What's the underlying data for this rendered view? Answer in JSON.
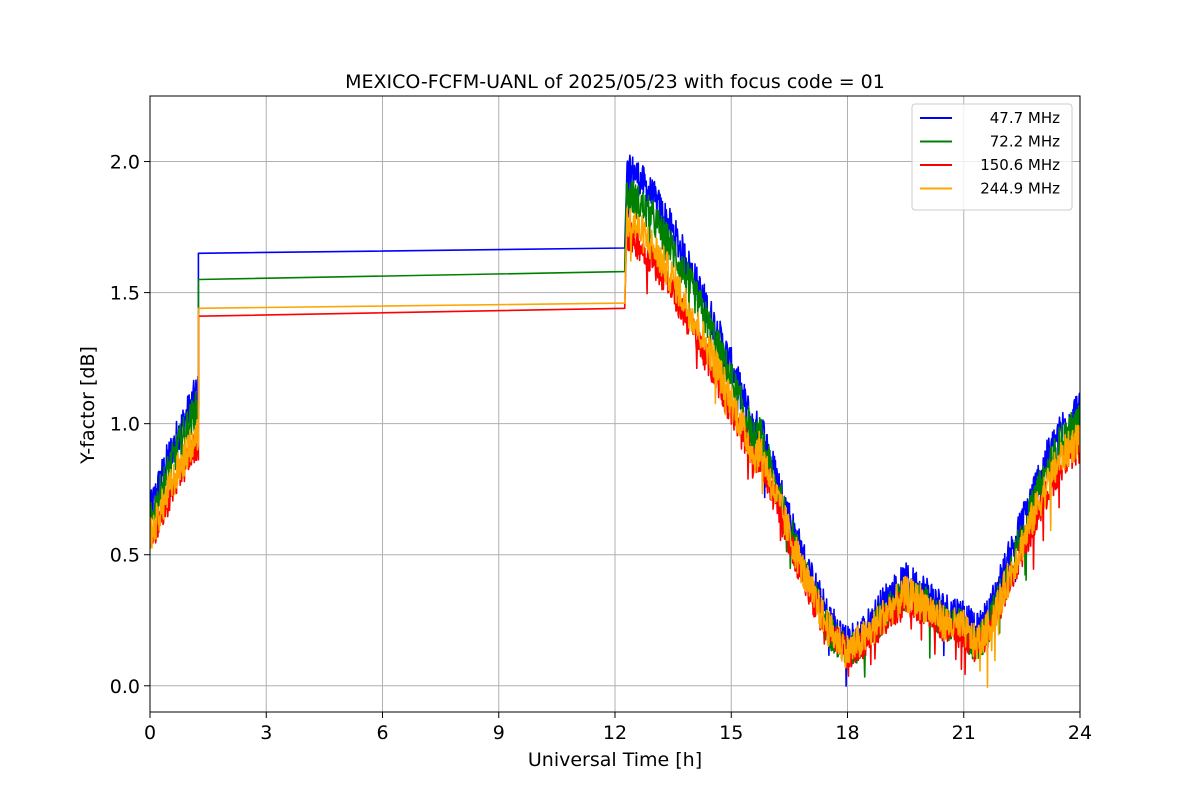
{
  "chart_data": {
    "type": "line",
    "title": "MEXICO-FCFM-UANL of 2025/05/23 with focus code = 01",
    "xlabel": "Universal Time [h]",
    "ylabel": "Y-factor [dB]",
    "xlim": [
      0,
      24
    ],
    "ylim": [
      -0.1,
      2.25
    ],
    "xticks": [
      0,
      3,
      6,
      9,
      12,
      15,
      18,
      21,
      24
    ],
    "xtick_labels": [
      "0",
      "3",
      "6",
      "9",
      "12",
      "15",
      "18",
      "21",
      "24"
    ],
    "yticks": [
      0.0,
      0.5,
      1.0,
      1.5,
      2.0
    ],
    "ytick_labels": [
      "0.0",
      "0.5",
      "1.0",
      "1.5",
      "2.0"
    ],
    "grid": true,
    "legend_position": "top-right",
    "series": [
      {
        "name": "47.7 MHz",
        "color": "#0000ff",
        "x": [
          0,
          0.25,
          0.5,
          0.75,
          1.0,
          1.2,
          1.25,
          12.25,
          12.3,
          12.5,
          13.0,
          13.5,
          14.0,
          14.5,
          15.0,
          15.5,
          15.55,
          15.65,
          15.75,
          16.0,
          16.5,
          17.0,
          17.5,
          18.0,
          18.5,
          19.0,
          19.5,
          20.0,
          20.5,
          21.0,
          21.3,
          21.6,
          22.0,
          22.5,
          23.0,
          23.5,
          24.0
        ],
        "y": [
          0.66,
          0.78,
          0.88,
          0.97,
          1.05,
          1.12,
          1.65,
          1.67,
          1.95,
          1.96,
          1.86,
          1.73,
          1.57,
          1.4,
          1.22,
          1.02,
          0.98,
          0.98,
          1.0,
          0.87,
          0.64,
          0.43,
          0.26,
          0.16,
          0.22,
          0.33,
          0.4,
          0.36,
          0.29,
          0.27,
          0.2,
          0.26,
          0.42,
          0.62,
          0.82,
          0.98,
          1.07
        ],
        "spread": 0.07
      },
      {
        "name": "72.2 MHz",
        "color": "#008000",
        "x": [
          0,
          0.25,
          0.5,
          0.75,
          1.0,
          1.2,
          1.25,
          12.25,
          12.3,
          12.5,
          13.0,
          13.5,
          14.0,
          14.5,
          15.0,
          15.5,
          15.55,
          15.65,
          15.75,
          16.0,
          16.5,
          17.0,
          17.5,
          18.0,
          18.5,
          19.0,
          19.5,
          20.0,
          20.5,
          21.0,
          21.3,
          21.6,
          22.0,
          22.5,
          23.0,
          23.5,
          24.0
        ],
        "y": [
          0.62,
          0.73,
          0.83,
          0.92,
          1.0,
          1.06,
          1.55,
          1.58,
          1.87,
          1.86,
          1.78,
          1.66,
          1.51,
          1.35,
          1.17,
          0.98,
          0.94,
          0.94,
          0.96,
          0.83,
          0.6,
          0.39,
          0.22,
          0.12,
          0.18,
          0.28,
          0.35,
          0.31,
          0.24,
          0.22,
          0.15,
          0.21,
          0.37,
          0.57,
          0.77,
          0.93,
          1.01
        ],
        "spread": 0.07
      },
      {
        "name": "150.6 MHz",
        "color": "#ff0000",
        "x": [
          0,
          0.25,
          0.5,
          0.75,
          1.0,
          1.2,
          1.25,
          12.25,
          12.3,
          12.5,
          13.0,
          13.5,
          14.0,
          14.5,
          15.0,
          15.5,
          15.55,
          15.65,
          15.75,
          16.0,
          16.5,
          17.0,
          17.5,
          18.0,
          18.5,
          19.0,
          19.5,
          20.0,
          20.5,
          21.0,
          21.3,
          21.6,
          22.0,
          22.5,
          23.0,
          23.5,
          24.0
        ],
        "y": [
          0.55,
          0.63,
          0.72,
          0.8,
          0.87,
          0.92,
          1.41,
          1.44,
          1.72,
          1.7,
          1.62,
          1.5,
          1.36,
          1.21,
          1.05,
          0.88,
          0.85,
          0.85,
          0.88,
          0.76,
          0.55,
          0.36,
          0.21,
          0.12,
          0.17,
          0.26,
          0.32,
          0.29,
          0.22,
          0.2,
          0.14,
          0.19,
          0.33,
          0.51,
          0.69,
          0.84,
          0.91
        ],
        "spread": 0.06
      },
      {
        "name": "244.9 MHz",
        "color": "#ffa500",
        "x": [
          0,
          0.25,
          0.5,
          0.75,
          1.0,
          1.2,
          1.25,
          12.25,
          12.3,
          12.5,
          13.0,
          13.5,
          14.0,
          14.5,
          15.0,
          15.5,
          15.55,
          15.65,
          15.75,
          16.0,
          16.5,
          17.0,
          17.5,
          18.0,
          18.5,
          19.0,
          19.5,
          20.0,
          20.5,
          21.0,
          21.3,
          21.6,
          22.0,
          22.5,
          23.0,
          23.5,
          24.0
        ],
        "y": [
          0.57,
          0.66,
          0.75,
          0.83,
          0.9,
          0.95,
          1.44,
          1.46,
          1.77,
          1.76,
          1.67,
          1.55,
          1.41,
          1.26,
          1.09,
          0.91,
          0.88,
          0.88,
          0.91,
          0.79,
          0.58,
          0.38,
          0.22,
          0.13,
          0.19,
          0.28,
          0.35,
          0.31,
          0.24,
          0.22,
          0.16,
          0.21,
          0.35,
          0.54,
          0.72,
          0.87,
          0.95
        ],
        "spread": 0.07
      }
    ]
  }
}
